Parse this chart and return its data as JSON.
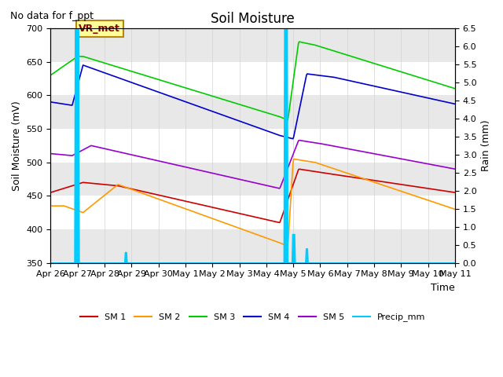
{
  "title": "Soil Moisture",
  "subtitle": "No data for f_ppt",
  "ylabel_left": "Soil Moisture (mV)",
  "ylabel_right": "Rain (mm)",
  "xlabel": "Time",
  "annotation": "VR_met",
  "ylim_left": [
    350,
    700
  ],
  "ylim_right": [
    0.0,
    6.5
  ],
  "yticks_left": [
    350,
    400,
    450,
    500,
    550,
    600,
    650,
    700
  ],
  "yticks_right": [
    0.0,
    0.5,
    1.0,
    1.5,
    2.0,
    2.5,
    3.0,
    3.5,
    4.0,
    4.5,
    5.0,
    5.5,
    6.0,
    6.5
  ],
  "x_labels": [
    "Apr 26",
    "Apr 27",
    "Apr 28",
    "Apr 29",
    "Apr 30",
    "May 1",
    "May 2",
    "May 3",
    "May 4",
    "May 5",
    "May 6",
    "May 7",
    "May 8",
    "May 9",
    "May 10",
    "May 11"
  ],
  "colors": {
    "SM1": "#cc0000",
    "SM2": "#ff9900",
    "SM3": "#00cc00",
    "SM4": "#0000cc",
    "SM5": "#9900cc",
    "Precip": "#00ccff",
    "bg_band": "#e8e8e8"
  },
  "legend_labels": [
    "SM 1",
    "SM 2",
    "SM 3",
    "SM 4",
    "SM 5",
    "Precip_mm"
  ]
}
